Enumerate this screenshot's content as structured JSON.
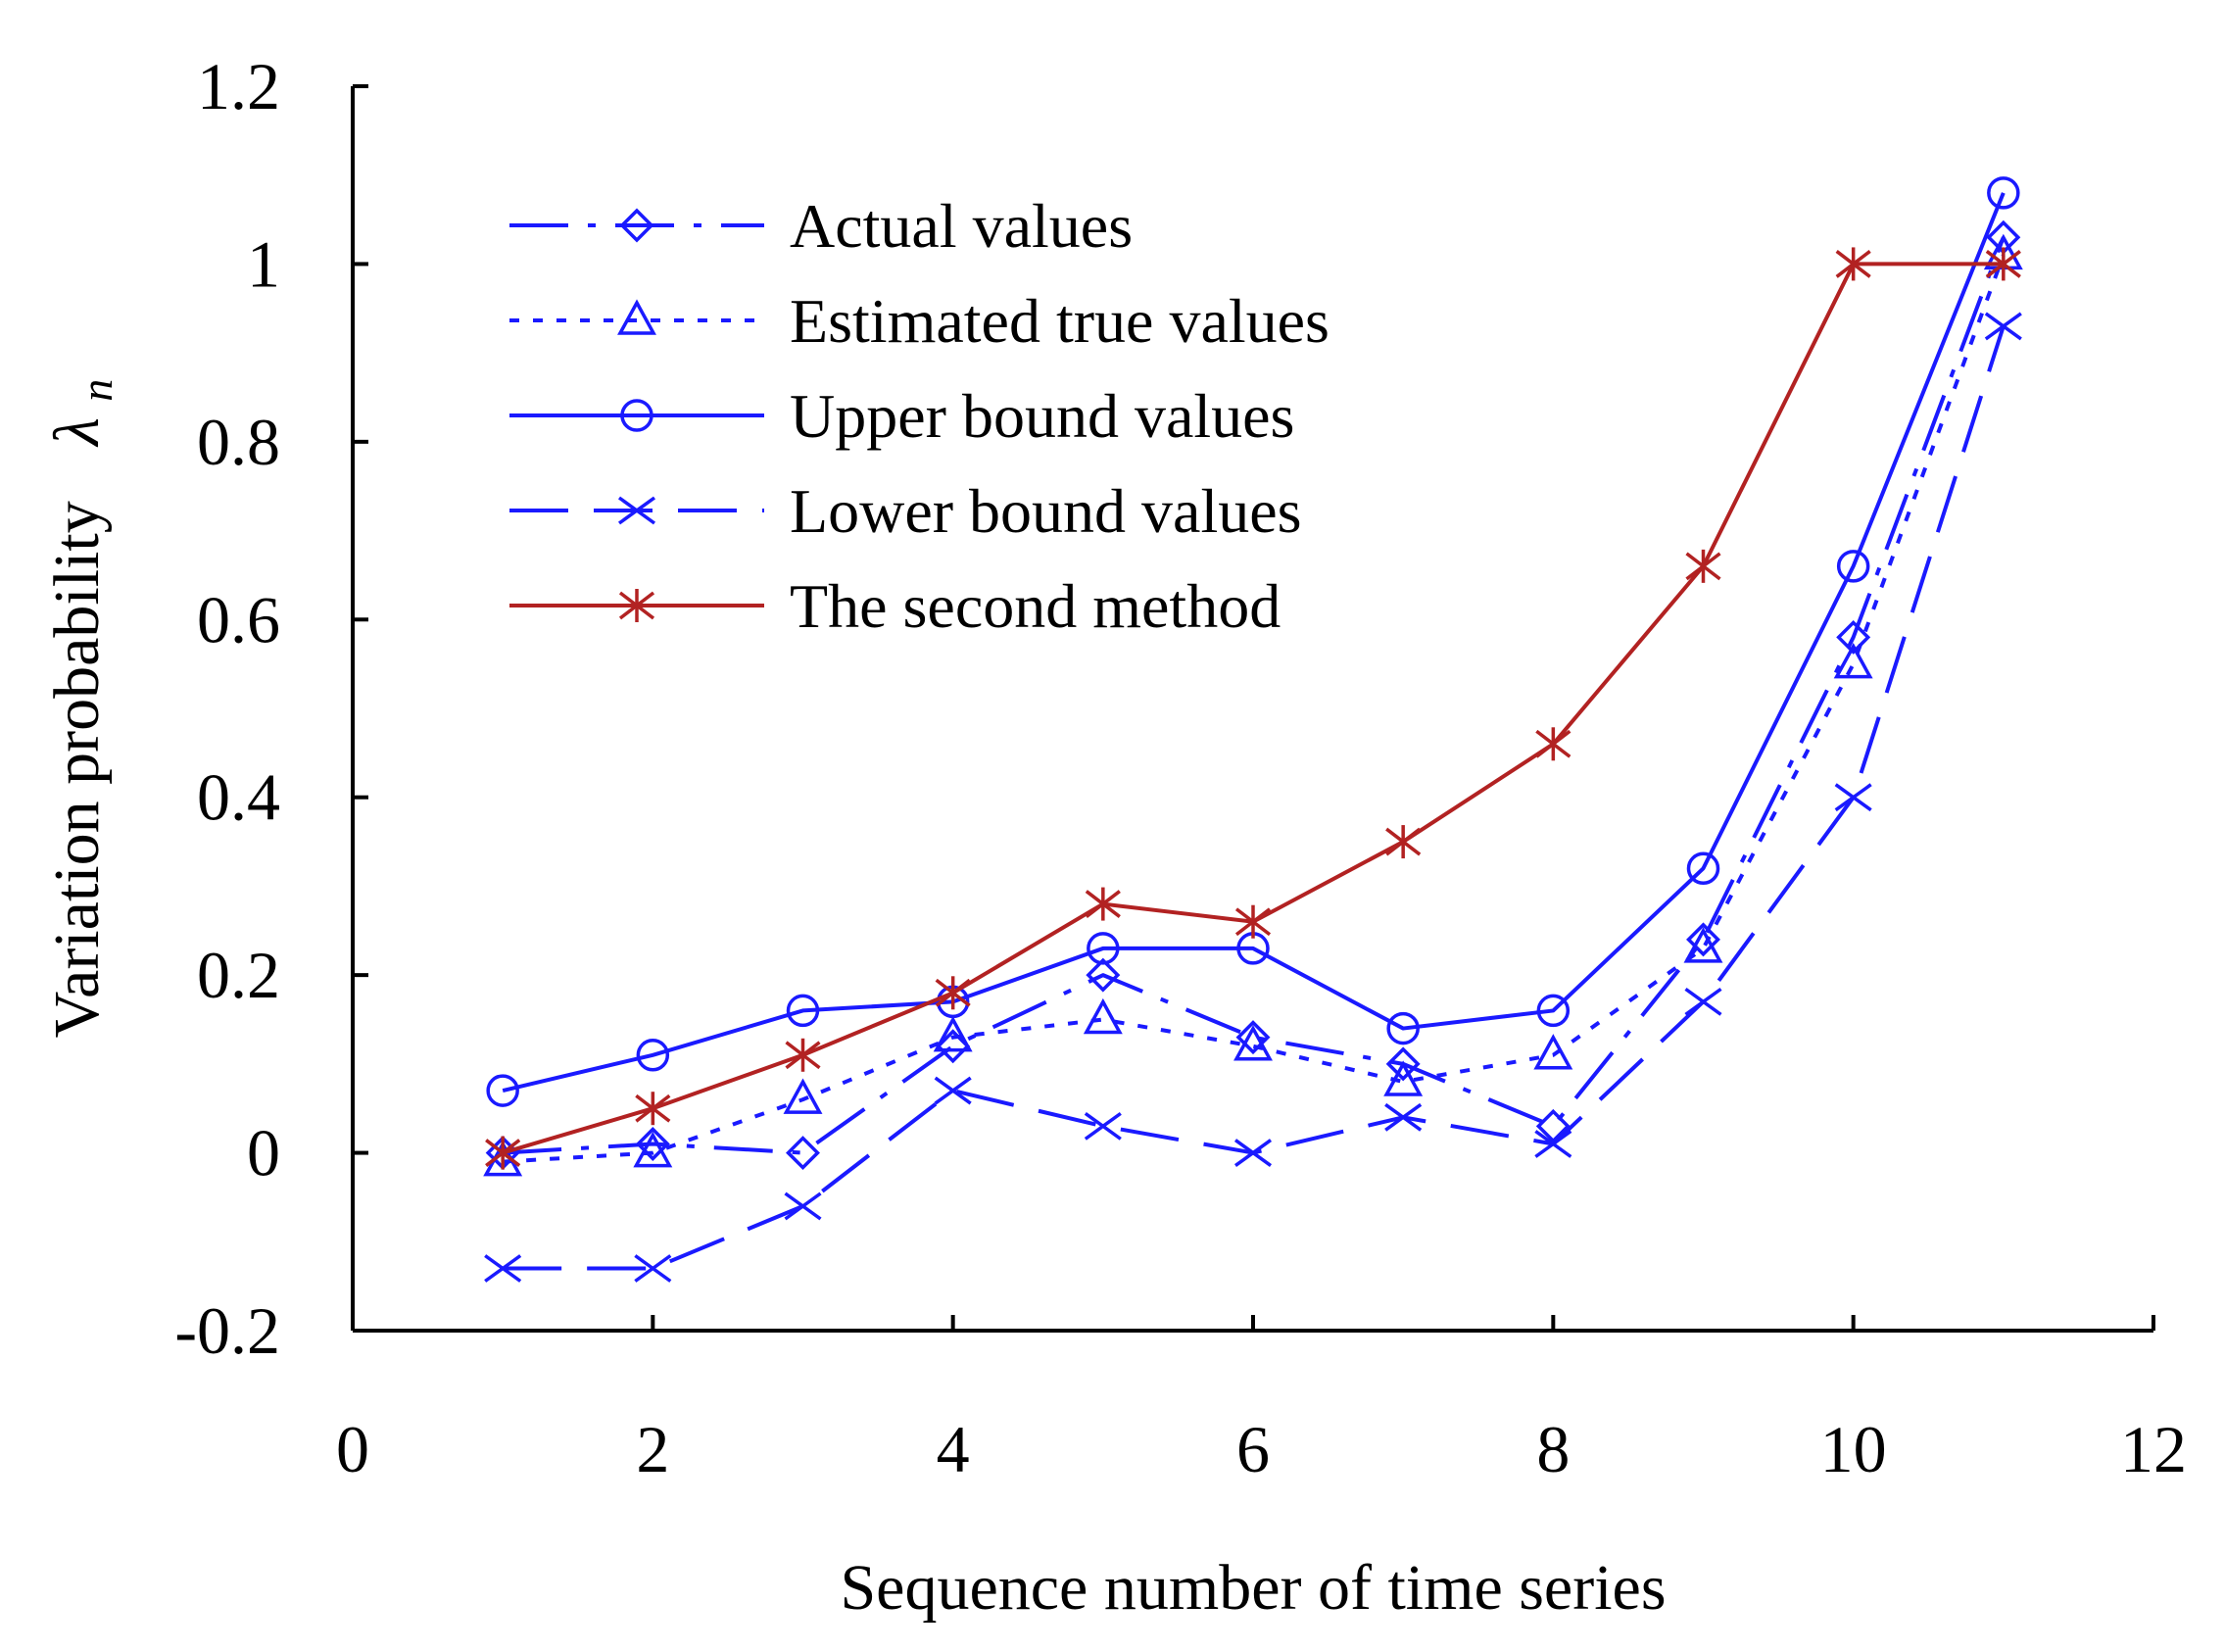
{
  "chart_data": {
    "type": "line",
    "title": "",
    "xlabel": "Sequence number of time series",
    "ylabel": "Variation probability",
    "ylabel_symbol": "λ",
    "ylabel_subscript": "n",
    "xlim": [
      0,
      12
    ],
    "ylim": [
      -0.2,
      1.2
    ],
    "xticks": [
      0,
      2,
      4,
      6,
      8,
      10,
      12
    ],
    "yticks": [
      -0.2,
      0,
      0.2,
      0.4,
      0.6,
      0.8,
      1,
      1.2
    ],
    "xtick_labels": [
      "0",
      "2",
      "4",
      "6",
      "8",
      "10",
      "12"
    ],
    "ytick_labels": [
      "-0.2",
      "0",
      "0.2",
      "0.4",
      "0.6",
      "0.8",
      "1",
      "1.2"
    ],
    "grid": false,
    "legend_position": "top-left",
    "x": [
      1,
      2,
      3,
      4,
      5,
      6,
      7,
      8,
      9,
      10,
      11
    ],
    "series": [
      {
        "name": "Actual values",
        "color": "#1a1aff",
        "dash": "long-dash-dot",
        "marker": "diamond",
        "values": [
          0.0,
          0.01,
          0.0,
          0.12,
          0.2,
          0.13,
          0.1,
          0.03,
          0.24,
          0.58,
          1.03
        ]
      },
      {
        "name": "Estimated true values",
        "color": "#1a1aff",
        "dash": "dotted",
        "marker": "triangle",
        "values": [
          -0.01,
          0.0,
          0.06,
          0.13,
          0.15,
          0.12,
          0.08,
          0.11,
          0.23,
          0.55,
          1.01
        ]
      },
      {
        "name": "Upper bound values",
        "color": "#1a1aff",
        "dash": "solid",
        "marker": "circle",
        "values": [
          0.07,
          0.11,
          0.16,
          0.17,
          0.23,
          0.23,
          0.14,
          0.16,
          0.32,
          0.66,
          1.08
        ]
      },
      {
        "name": "Lower bound values",
        "color": "#1a1aff",
        "dash": "long-dash",
        "marker": "x",
        "values": [
          -0.13,
          -0.13,
          -0.06,
          0.07,
          0.03,
          0.0,
          0.04,
          0.01,
          0.17,
          0.4,
          0.93
        ]
      },
      {
        "name": "The second method",
        "color": "#b22222",
        "dash": "solid",
        "marker": "star",
        "values": [
          0.0,
          0.05,
          0.11,
          0.18,
          0.28,
          0.26,
          0.35,
          0.46,
          0.66,
          1.0,
          1.0
        ]
      }
    ]
  }
}
